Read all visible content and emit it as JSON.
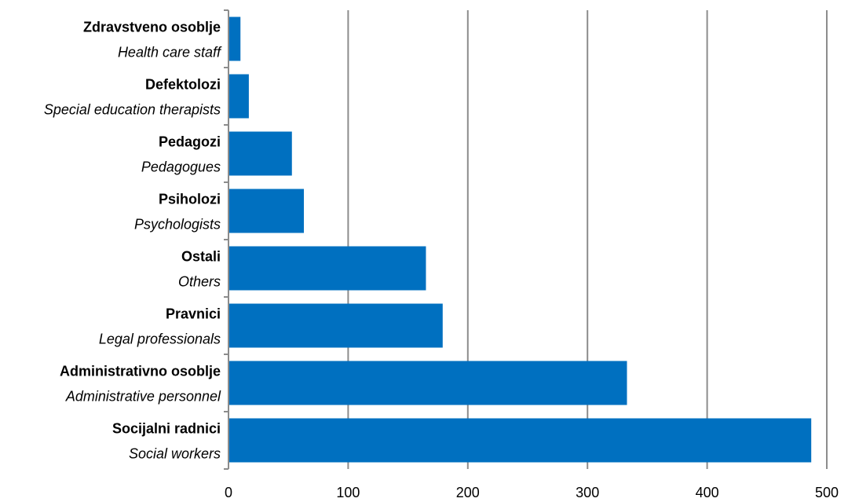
{
  "chart_data": {
    "type": "bar",
    "orientation": "horizontal",
    "categories": [
      {
        "label": "Zdravstveno osoblje",
        "sublabel": "Health care staff",
        "value": 10
      },
      {
        "label": "Defektolozi",
        "sublabel": "Special education therapists",
        "value": 17
      },
      {
        "label": "Pedagozi",
        "sublabel": "Pedagogues",
        "value": 53
      },
      {
        "label": "Psiholozi",
        "sublabel": "Psychologists",
        "value": 63
      },
      {
        "label": "Ostali",
        "sublabel": "Others",
        "value": 165
      },
      {
        "label": "Pravnici",
        "sublabel": "Legal professionals",
        "value": 179
      },
      {
        "label": "Administrativno osoblje",
        "sublabel": "Administrative personnel",
        "value": 333
      },
      {
        "label": "Socijalni radnici",
        "sublabel": "Social workers",
        "value": 487
      }
    ],
    "xlim": [
      0,
      500
    ],
    "xticks": [
      "0",
      "100",
      "200",
      "300",
      "400",
      "500"
    ],
    "grid": "vertical",
    "bar_color": "#0070C0",
    "grid_color": "#8c8c8c"
  }
}
